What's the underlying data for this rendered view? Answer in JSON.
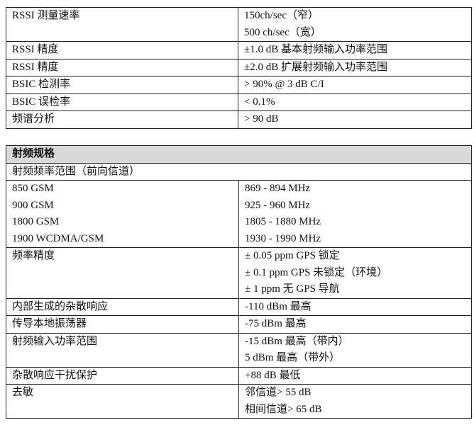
{
  "table1": {
    "rows": [
      {
        "label": "RSSI 测量速率",
        "values": [
          "150ch/sec（窄）",
          "500 ch/sec（宽）"
        ]
      },
      {
        "label": "RSSI 精度",
        "values": [
          "±1.0 dB 基本射频输入功率范围"
        ]
      },
      {
        "label": "RSSI 精度",
        "values": [
          "±2.0 dB 扩展射频输入功率范围"
        ]
      },
      {
        "label": "BSIC 检测率",
        "values": [
          "> 90% @ 3 dB C/I"
        ]
      },
      {
        "label": "BSIC  误检率",
        "values": [
          "< 0.1%"
        ]
      },
      {
        "label": "频谱分析",
        "values": [
          "> 90 dB"
        ]
      }
    ]
  },
  "table2": {
    "header": "射频规格",
    "subheader": "射频频率范围（前向信道）",
    "rows": [
      {
        "labels": [
          "850 GSM",
          "900 GSM",
          "1800 GSM",
          "1900 WCDMA/GSM"
        ],
        "values": [
          "869 - 894 MHz",
          "925 - 960 MHz",
          "1805 - 1880 MHz",
          "1930 - 1990 MHz"
        ]
      },
      {
        "labels": [
          "频率精度"
        ],
        "values": [
          "±  0.05 ppm GPS  锁定",
          "±  0.1 ppm GPS  未锁定（环境）",
          "±  1 ppm 无 GPS  导航"
        ]
      },
      {
        "labels": [
          "内部生成的杂散响应"
        ],
        "values": [
          "-110 dBm 最高"
        ]
      },
      {
        "labels": [
          "传导本地振荡器"
        ],
        "values": [
          "-75 dBm 最高"
        ]
      },
      {
        "labels": [
          "射频输入功率范围"
        ],
        "values": [
          "-15 dBm 最高（带内）",
          "5 dBm 最高（带外）"
        ]
      },
      {
        "labels": [
          "杂散响应干扰保护"
        ],
        "values": [
          "+88 dB 最低"
        ]
      },
      {
        "labels": [
          "去敏"
        ],
        "values": [
          "邻信道> 55 dB",
          "相间信道> 65 dB"
        ]
      }
    ]
  }
}
